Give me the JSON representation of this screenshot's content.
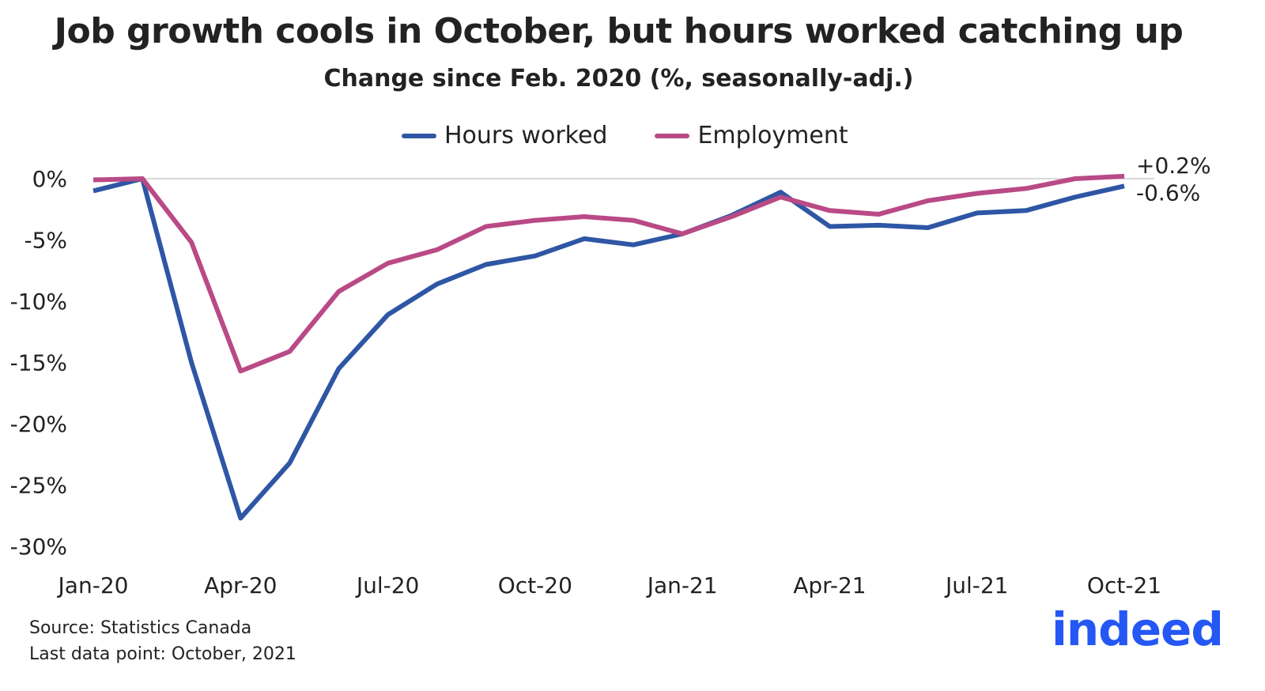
{
  "chart_data": {
    "type": "line",
    "title": "Job growth cools in October, but hours worked catching up",
    "subtitle": "Change since Feb. 2020 (%, seasonally-adj.)",
    "xlabel": "",
    "ylabel": "",
    "ylim": [
      -30,
      0
    ],
    "yticks": [
      0,
      -5,
      -10,
      -15,
      -20,
      -25,
      -30
    ],
    "ytick_labels": [
      "0%",
      "-5%",
      "-10%",
      "-15%",
      "-20%",
      "-25%",
      "-30%"
    ],
    "x": [
      "Jan-20",
      "Feb-20",
      "Mar-20",
      "Apr-20",
      "May-20",
      "Jun-20",
      "Jul-20",
      "Aug-20",
      "Sep-20",
      "Oct-20",
      "Nov-20",
      "Dec-20",
      "Jan-21",
      "Feb-21",
      "Mar-21",
      "Apr-21",
      "May-21",
      "Jun-21",
      "Jul-21",
      "Aug-21",
      "Sep-21",
      "Oct-21"
    ],
    "xtick_labels": [
      "Jan-20",
      "Apr-20",
      "Jul-20",
      "Oct-20",
      "Jan-21",
      "Apr-21",
      "Jul-21",
      "Oct-21"
    ],
    "legend_position": "top",
    "series": [
      {
        "name": "Hours worked",
        "color": "#2e56a4",
        "values": [
          -1.0,
          0,
          -15.0,
          -27.7,
          -23.2,
          -15.5,
          -11.1,
          -8.6,
          -7.0,
          -6.3,
          -4.9,
          -5.4,
          -4.5,
          -3.0,
          -1.1,
          -3.9,
          -3.8,
          -4.0,
          -2.8,
          -2.6,
          -1.5,
          -0.6
        ],
        "end_label": "-0.6%"
      },
      {
        "name": "Employment",
        "color": "#b94a86",
        "values": [
          -0.1,
          0,
          -5.2,
          -15.7,
          -14.1,
          -9.2,
          -6.9,
          -5.8,
          -3.9,
          -3.4,
          -3.1,
          -3.4,
          -4.5,
          -3.1,
          -1.5,
          -2.6,
          -2.9,
          -1.8,
          -1.2,
          -0.8,
          0,
          0.2
        ],
        "end_label": "+0.2%"
      }
    ]
  },
  "footer": {
    "source": "Source: Statistics Canada",
    "last_point": "Last data point: October, 2021"
  },
  "logo_text": "indeed"
}
